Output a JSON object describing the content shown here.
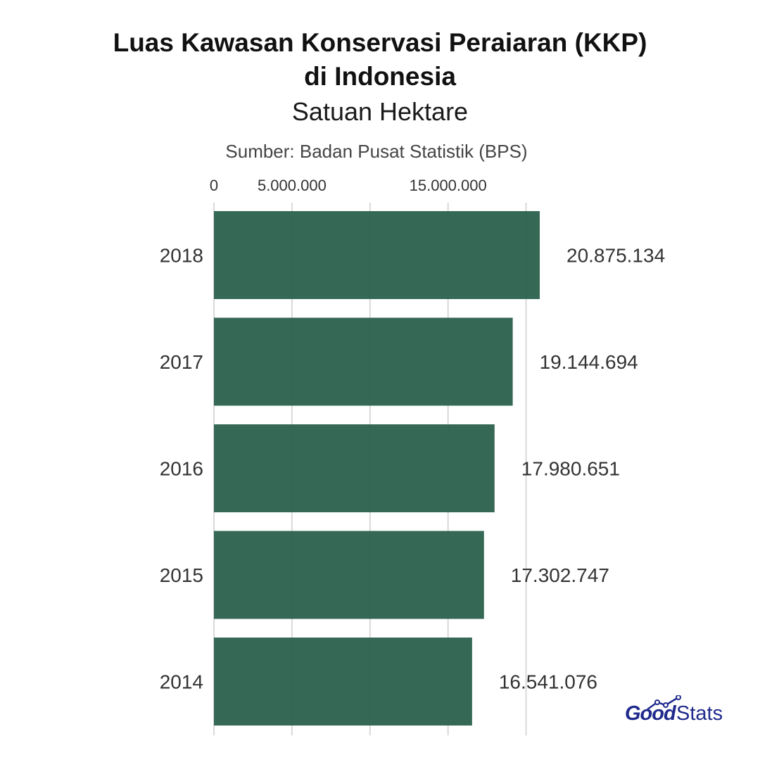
{
  "title_line1": "Luas Kawasan Konservasi Peraiaran (KKP)",
  "title_line2": "di Indonesia",
  "subtitle": "Satuan Hektare",
  "source": "Sumber: Badan Pusat Statistik (BPS)",
  "logo": {
    "text_bold": "Good",
    "text_regular": "Stats",
    "color": "#1f2a8c"
  },
  "colors": {
    "bar": "#2e6350",
    "grid": "#d9d9d9",
    "text": "#333333"
  },
  "chart_data": {
    "type": "bar",
    "orientation": "horizontal",
    "categories": [
      "2018",
      "2017",
      "2016",
      "2015",
      "2014"
    ],
    "values": [
      20875134,
      19144694,
      17980651,
      17302747,
      16541076
    ],
    "data_labels": [
      "20.875.134",
      "19.144.694",
      "17.980.651",
      "17.302.747",
      "16.541.076"
    ],
    "x_ticks": [
      0,
      5000000,
      10000000,
      15000000,
      20000000
    ],
    "x_tick_labels": [
      "0",
      "5.000.000",
      "",
      "15.000.000",
      ""
    ],
    "xlim": [
      0,
      20875134
    ],
    "axis_position": "top",
    "grid": true
  }
}
